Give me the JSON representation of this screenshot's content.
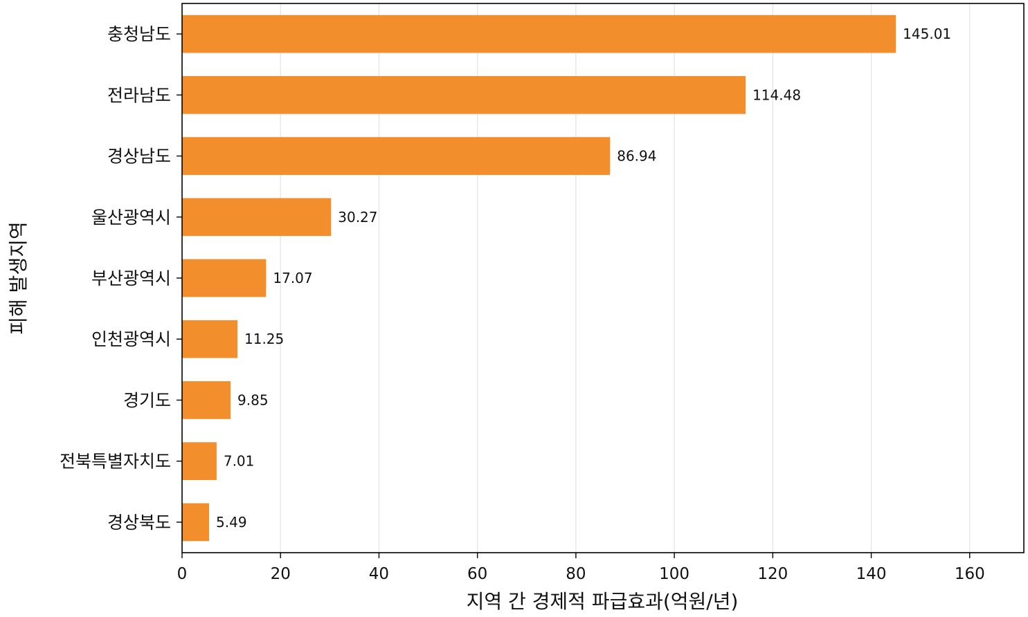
{
  "chart_data": {
    "type": "bar",
    "orientation": "horizontal",
    "categories": [
      "충청남도",
      "전라남도",
      "경상남도",
      "울산광역시",
      "부산광역시",
      "인천광역시",
      "경기도",
      "전북특별자치도",
      "경상북도"
    ],
    "values": [
      145.01,
      114.48,
      86.94,
      30.27,
      17.07,
      11.25,
      9.85,
      7.01,
      5.49
    ],
    "value_labels": [
      "145.01",
      "114.48",
      "86.94",
      "30.27",
      "17.07",
      "11.25",
      "9.85",
      "7.01",
      "5.49"
    ],
    "xlabel": "지역 간 경제적 파급효과(억원/년)",
    "ylabel": "피해 발생지역",
    "xlim": [
      0,
      171
    ],
    "xticks": [
      0,
      20,
      40,
      60,
      80,
      100,
      120,
      140,
      160
    ],
    "xtick_labels": [
      "0",
      "20",
      "40",
      "60",
      "80",
      "100",
      "120",
      "140",
      "160"
    ],
    "grid": "vertical",
    "bar_color": "#F28E2B",
    "grid_color": "#e3e3e3"
  }
}
